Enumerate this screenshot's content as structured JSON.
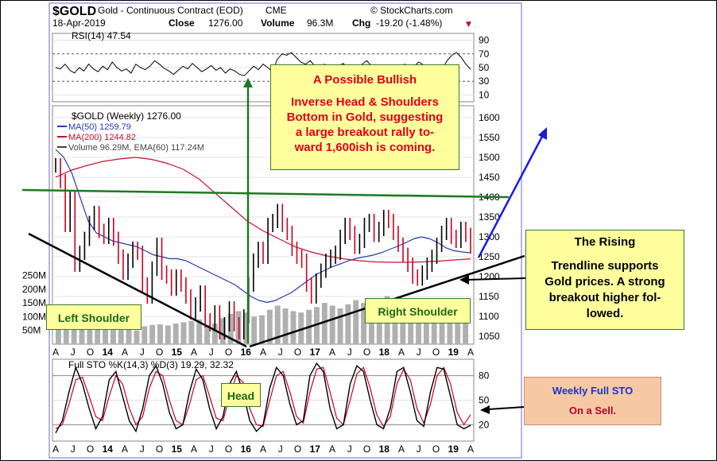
{
  "header": {
    "symbol": "$GOLD",
    "name": "Gold - Continuous Contract (EOD)",
    "exchange": "CME",
    "source": "© StockCharts.com",
    "date": "18-Apr-2019",
    "close_label": "Close",
    "close": "1276.00",
    "volume_label": "Volume",
    "volume": "96.3M",
    "chg_label": "Chg",
    "chg": "-19.20 (-1.48%)",
    "chg_marker": "▼"
  },
  "colors": {
    "rsi_line": "#000000",
    "candle_up": "#000000",
    "candle_down": "#cc0022",
    "ma50": "#2a3ab0",
    "ma200": "#cc1030",
    "volume": "#b0b0b0",
    "neckline": "#1e7a1e",
    "shoulder_trend": "#000000",
    "breakout_arrow": "#1a1ae0",
    "callout_fill": "#ffff9e",
    "sto_callout_fill": "#f6c9a4"
  },
  "chart_data": [
    {
      "type": "line",
      "panel": "rsi",
      "title": "RSI(14) 47.54",
      "y_ticks": [
        90,
        70,
        50,
        30,
        10
      ],
      "ylim": [
        0,
        100
      ],
      "series": [
        {
          "name": "RSI(14)",
          "values": [
            50,
            48,
            55,
            46,
            42,
            50,
            45,
            55,
            48,
            44,
            52,
            47,
            58,
            50,
            45,
            48,
            42,
            55,
            50,
            47,
            52,
            60,
            55,
            49,
            45,
            40,
            46,
            52,
            48,
            56,
            50,
            44,
            48,
            53,
            46,
            50,
            42,
            48,
            45,
            40,
            38,
            45,
            52,
            47,
            55,
            50,
            44,
            62,
            70,
            68,
            72,
            65,
            58,
            55,
            60,
            52,
            48,
            55,
            50,
            46,
            52,
            56,
            50,
            45,
            48,
            55,
            60,
            52,
            48,
            44,
            46,
            40,
            45,
            50,
            55,
            48,
            52,
            58,
            54,
            50,
            46,
            52,
            48,
            60,
            68,
            72,
            65,
            55,
            47.54
          ]
        }
      ]
    },
    {
      "type": "line",
      "panel": "price",
      "title": "$GOLD (Weekly) 1276.00",
      "y_ticks": [
        1600,
        1550,
        1500,
        1450,
        1400,
        1350,
        1300,
        1250,
        1200,
        1150,
        1100,
        1050
      ],
      "ylim": [
        1030,
        1630
      ],
      "volume_ticks": [
        "250M",
        "200M",
        "150M",
        "100M",
        "50M"
      ],
      "x_ticks": [
        "A",
        "J",
        "O",
        "14",
        "A",
        "J",
        "O",
        "15",
        "A",
        "J",
        "O",
        "16",
        "A",
        "J",
        "O",
        "17",
        "A",
        "J",
        "O",
        "18",
        "A",
        "J",
        "O",
        "19",
        "A"
      ],
      "legend": [
        {
          "name": "MA(50)",
          "value": "1259.79"
        },
        {
          "name": "MA(200)",
          "value": "1244.82"
        },
        {
          "name": "Volume 96.29M, EMA(60)",
          "value": "117.24M"
        }
      ],
      "series": [
        {
          "name": "$GOLD (Weekly)",
          "values": [
            1480,
            1440,
            1330,
            1400,
            1230,
            1260,
            1295,
            1335,
            1360,
            1315,
            1300,
            1330,
            1295,
            1250,
            1210,
            1240,
            1270,
            1260,
            1180,
            1150,
            1220,
            1280,
            1210,
            1200,
            1170,
            1200,
            1180,
            1150,
            1110,
            1130,
            1160,
            1090,
            1080,
            1110,
            1060,
            1080,
            1120,
            1080,
            1060,
            1100,
            1180,
            1240,
            1270,
            1250,
            1330,
            1340,
            1365,
            1330,
            1310,
            1270,
            1250,
            1240,
            1180,
            1150,
            1190,
            1215,
            1240,
            1250,
            1260,
            1300,
            1330,
            1310,
            1275,
            1290,
            1330,
            1340,
            1305,
            1320,
            1350,
            1340,
            1310,
            1280,
            1255,
            1230,
            1200,
            1195,
            1210,
            1230,
            1250,
            1280,
            1310,
            1330,
            1300,
            1290,
            1320,
            1305,
            1276
          ]
        },
        {
          "name": "MA(50)",
          "values": [
            1520,
            1500,
            1460,
            1400,
            1340,
            1310,
            1300,
            1290,
            1285,
            1280,
            1275,
            1265,
            1255,
            1250,
            1245,
            1245,
            1240,
            1230,
            1220,
            1210,
            1200,
            1190,
            1180,
            1165,
            1150,
            1140,
            1135,
            1140,
            1150,
            1160,
            1175,
            1190,
            1205,
            1215,
            1225,
            1232,
            1240,
            1246,
            1250,
            1254,
            1260,
            1268,
            1276,
            1285,
            1295,
            1300,
            1295,
            1285,
            1272,
            1265,
            1262,
            1259.79
          ]
        },
        {
          "name": "MA(200)",
          "values": [
            1450,
            1468,
            1480,
            1490,
            1496,
            1500,
            1495,
            1485,
            1470,
            1445,
            1410,
            1375,
            1340,
            1315,
            1295,
            1275,
            1262,
            1252,
            1245,
            1240,
            1237,
            1236,
            1236,
            1237,
            1239,
            1242,
            1244.82
          ]
        },
        {
          "name": "Volume",
          "values": [
            60,
            70,
            80,
            55,
            65,
            70,
            75,
            80,
            60,
            55,
            50,
            65,
            70,
            72,
            68,
            75,
            80,
            85,
            90,
            70,
            75,
            95,
            110,
            120,
            115,
            100,
            105,
            125,
            140,
            130,
            120,
            115,
            125,
            135,
            150,
            140,
            130,
            145,
            160,
            150,
            140,
            165,
            175,
            160,
            150,
            140,
            145,
            130,
            125,
            120,
            110,
            115,
            96.29
          ]
        }
      ]
    },
    {
      "type": "line",
      "panel": "stochastic",
      "title": "Full STO %K(14,3) %D(3) 19.29, 32.32",
      "y_ticks": [
        80,
        50,
        20
      ],
      "ylim": [
        0,
        100
      ],
      "x_ticks": [
        "A",
        "J",
        "O",
        "14",
        "A",
        "J",
        "O",
        "15",
        "A",
        "J",
        "O",
        "16",
        "A",
        "J",
        "O",
        "17",
        "A",
        "J",
        "O",
        "18",
        "A",
        "J",
        "O",
        "19",
        "A"
      ],
      "series": [
        {
          "name": "%K(14,3)",
          "values": [
            10,
            25,
            60,
            90,
            70,
            40,
            15,
            30,
            75,
            85,
            55,
            25,
            12,
            40,
            80,
            92,
            70,
            35,
            15,
            20,
            60,
            88,
            75,
            40,
            15,
            30,
            70,
            85,
            60,
            25,
            12,
            20,
            65,
            90,
            80,
            45,
            20,
            25,
            80,
            95,
            85,
            40,
            15,
            20,
            70,
            92,
            85,
            50,
            20,
            15,
            40,
            85,
            90,
            60,
            25,
            18,
            60,
            90,
            88,
            55,
            20,
            15,
            19.29
          ]
        },
        {
          "name": "%D(3)",
          "values": [
            15,
            20,
            45,
            75,
            78,
            55,
            30,
            25,
            55,
            80,
            70,
            40,
            20,
            30,
            65,
            85,
            80,
            50,
            25,
            20,
            45,
            75,
            80,
            55,
            28,
            25,
            55,
            80,
            72,
            40,
            20,
            18,
            50,
            80,
            85,
            60,
            30,
            22,
            60,
            88,
            90,
            60,
            28,
            20,
            50,
            82,
            90,
            65,
            32,
            18,
            30,
            70,
            88,
            75,
            40,
            22,
            45,
            80,
            90,
            70,
            35,
            20,
            32.32
          ]
        }
      ]
    }
  ],
  "annotations": {
    "bullish_title": "A Possible Bullish",
    "bullish_body": [
      "Inverse Head & Shoulders",
      "Bottom in Gold, suggesting",
      "a large breakout rally to-",
      "ward 1,600ish is coming."
    ],
    "rising_title": "The Rising",
    "rising_body": [
      "Trendline supports",
      "Gold prices. A strong",
      "breakout higher fol-",
      "lowed."
    ],
    "left_shoulder": "Left Shoulder",
    "right_shoulder": "Right Shoulder",
    "head": "Head",
    "sto_title": "Weekly Full STO",
    "sto_body": "On a Sell."
  }
}
